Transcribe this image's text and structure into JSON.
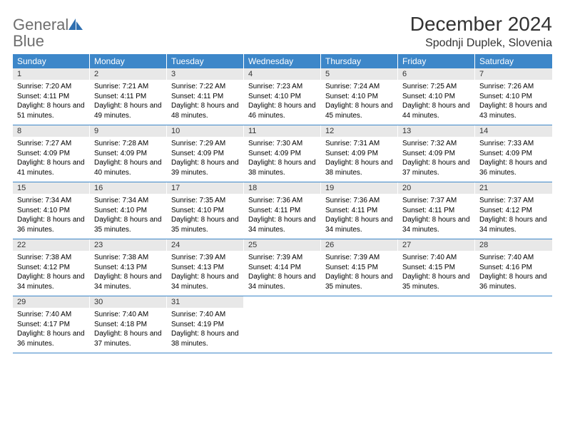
{
  "logo": {
    "word1": "General",
    "word2": "Blue",
    "text_color": "#6e6e6e",
    "blue_color": "#2f6fb0"
  },
  "title": "December 2024",
  "location": "Spodnji Duplek, Slovenia",
  "colors": {
    "header_bg": "#3d87c9",
    "header_fg": "#ffffff",
    "daynum_bg": "#e8e8e8",
    "text": "#000000",
    "border": "#3d87c9"
  },
  "fonts": {
    "title_size": 28,
    "location_size": 16,
    "dow_size": 12,
    "daynum_size": 11,
    "body_size": 10
  },
  "dow": [
    "Sunday",
    "Monday",
    "Tuesday",
    "Wednesday",
    "Thursday",
    "Friday",
    "Saturday"
  ],
  "weeks": [
    [
      {
        "n": "1",
        "sr": "7:20 AM",
        "ss": "4:11 PM",
        "dl": "8 hours and 51 minutes."
      },
      {
        "n": "2",
        "sr": "7:21 AM",
        "ss": "4:11 PM",
        "dl": "8 hours and 49 minutes."
      },
      {
        "n": "3",
        "sr": "7:22 AM",
        "ss": "4:11 PM",
        "dl": "8 hours and 48 minutes."
      },
      {
        "n": "4",
        "sr": "7:23 AM",
        "ss": "4:10 PM",
        "dl": "8 hours and 46 minutes."
      },
      {
        "n": "5",
        "sr": "7:24 AM",
        "ss": "4:10 PM",
        "dl": "8 hours and 45 minutes."
      },
      {
        "n": "6",
        "sr": "7:25 AM",
        "ss": "4:10 PM",
        "dl": "8 hours and 44 minutes."
      },
      {
        "n": "7",
        "sr": "7:26 AM",
        "ss": "4:10 PM",
        "dl": "8 hours and 43 minutes."
      }
    ],
    [
      {
        "n": "8",
        "sr": "7:27 AM",
        "ss": "4:09 PM",
        "dl": "8 hours and 41 minutes."
      },
      {
        "n": "9",
        "sr": "7:28 AM",
        "ss": "4:09 PM",
        "dl": "8 hours and 40 minutes."
      },
      {
        "n": "10",
        "sr": "7:29 AM",
        "ss": "4:09 PM",
        "dl": "8 hours and 39 minutes."
      },
      {
        "n": "11",
        "sr": "7:30 AM",
        "ss": "4:09 PM",
        "dl": "8 hours and 38 minutes."
      },
      {
        "n": "12",
        "sr": "7:31 AM",
        "ss": "4:09 PM",
        "dl": "8 hours and 38 minutes."
      },
      {
        "n": "13",
        "sr": "7:32 AM",
        "ss": "4:09 PM",
        "dl": "8 hours and 37 minutes."
      },
      {
        "n": "14",
        "sr": "7:33 AM",
        "ss": "4:09 PM",
        "dl": "8 hours and 36 minutes."
      }
    ],
    [
      {
        "n": "15",
        "sr": "7:34 AM",
        "ss": "4:10 PM",
        "dl": "8 hours and 36 minutes."
      },
      {
        "n": "16",
        "sr": "7:34 AM",
        "ss": "4:10 PM",
        "dl": "8 hours and 35 minutes."
      },
      {
        "n": "17",
        "sr": "7:35 AM",
        "ss": "4:10 PM",
        "dl": "8 hours and 35 minutes."
      },
      {
        "n": "18",
        "sr": "7:36 AM",
        "ss": "4:11 PM",
        "dl": "8 hours and 34 minutes."
      },
      {
        "n": "19",
        "sr": "7:36 AM",
        "ss": "4:11 PM",
        "dl": "8 hours and 34 minutes."
      },
      {
        "n": "20",
        "sr": "7:37 AM",
        "ss": "4:11 PM",
        "dl": "8 hours and 34 minutes."
      },
      {
        "n": "21",
        "sr": "7:37 AM",
        "ss": "4:12 PM",
        "dl": "8 hours and 34 minutes."
      }
    ],
    [
      {
        "n": "22",
        "sr": "7:38 AM",
        "ss": "4:12 PM",
        "dl": "8 hours and 34 minutes."
      },
      {
        "n": "23",
        "sr": "7:38 AM",
        "ss": "4:13 PM",
        "dl": "8 hours and 34 minutes."
      },
      {
        "n": "24",
        "sr": "7:39 AM",
        "ss": "4:13 PM",
        "dl": "8 hours and 34 minutes."
      },
      {
        "n": "25",
        "sr": "7:39 AM",
        "ss": "4:14 PM",
        "dl": "8 hours and 34 minutes."
      },
      {
        "n": "26",
        "sr": "7:39 AM",
        "ss": "4:15 PM",
        "dl": "8 hours and 35 minutes."
      },
      {
        "n": "27",
        "sr": "7:40 AM",
        "ss": "4:15 PM",
        "dl": "8 hours and 35 minutes."
      },
      {
        "n": "28",
        "sr": "7:40 AM",
        "ss": "4:16 PM",
        "dl": "8 hours and 36 minutes."
      }
    ],
    [
      {
        "n": "29",
        "sr": "7:40 AM",
        "ss": "4:17 PM",
        "dl": "8 hours and 36 minutes."
      },
      {
        "n": "30",
        "sr": "7:40 AM",
        "ss": "4:18 PM",
        "dl": "8 hours and 37 minutes."
      },
      {
        "n": "31",
        "sr": "7:40 AM",
        "ss": "4:19 PM",
        "dl": "8 hours and 38 minutes."
      },
      null,
      null,
      null,
      null
    ]
  ],
  "labels": {
    "sunrise": "Sunrise:",
    "sunset": "Sunset:",
    "daylight": "Daylight:"
  }
}
